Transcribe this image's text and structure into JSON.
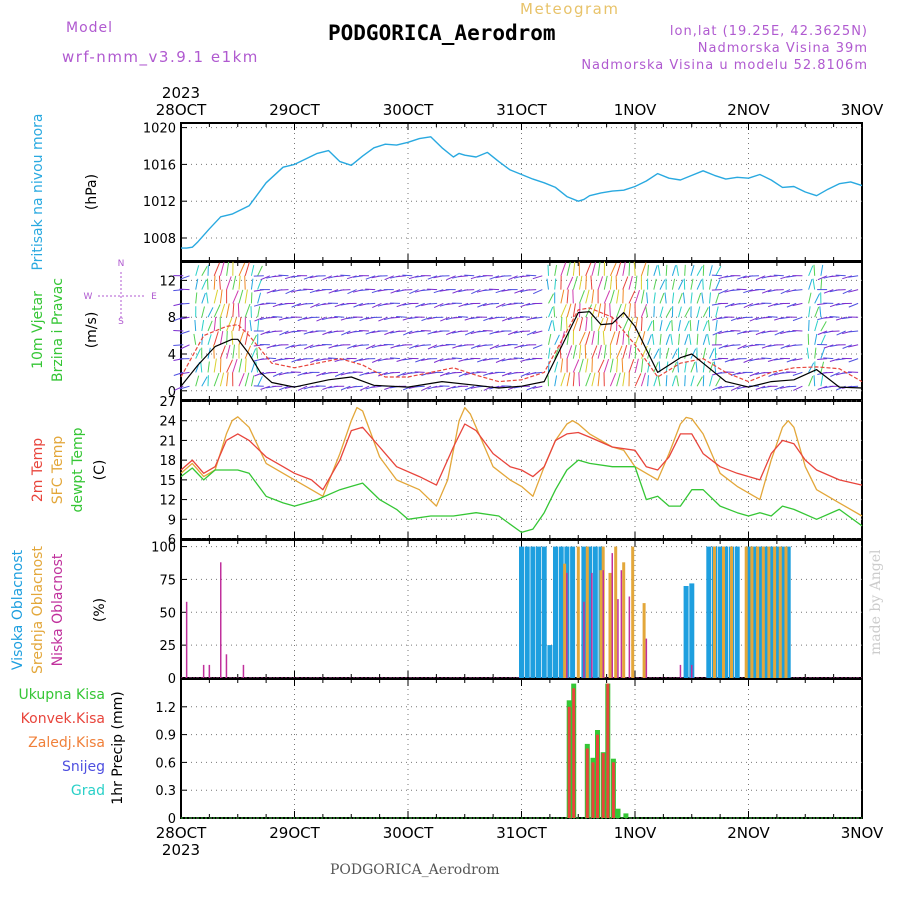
{
  "header": {
    "model_label": "Model",
    "model_name": "wrf-nmm_v3.9.1  e1km",
    "meteogram_label": "Meteogram",
    "station_title": "PODGORICA_Aerodrom",
    "coords": "lon,lat (19.25E, 42.3625N)",
    "elevation": "Nadmorska Visina 39m",
    "model_elevation": "Nadmorska Visina u modelu 52.8106m",
    "footer_title": "PODGORICA_Aerodrom",
    "watermark": "made by Angel"
  },
  "colors": {
    "pressure": "#29a9e0",
    "temp2m": "#e8453c",
    "sfc_temp": "#e3a73a",
    "dewpt": "#35c635",
    "cloud_high": "#1e9fdf",
    "cloud_mid": "#e3a73a",
    "cloud_low": "#c0309c",
    "precip_total": "#35c635",
    "precip_conv": "#e8453c",
    "header_purple": "#b05ad0",
    "meteogram_gold": "#e8c36a"
  },
  "chart_data": [
    {
      "type": "line",
      "panel": "pressure",
      "ylabels": [
        "Pritisak na nivou mora",
        "(hPa)"
      ],
      "xticks": [
        "28OCT",
        "29OCT",
        "30OCT",
        "31OCT",
        "1NOV",
        "2NOV",
        "3NOV"
      ],
      "year": "2023",
      "ylim": [
        1005.5,
        1020.5
      ],
      "yticks": [
        1008,
        1012,
        1016,
        1020
      ],
      "grid": true,
      "series": [
        {
          "x": [
            0,
            0.05,
            0.1,
            0.15,
            0.25,
            0.35,
            0.45,
            0.6,
            0.75,
            0.9,
            1.0,
            1.1,
            1.2,
            1.3,
            1.4,
            1.5,
            1.6,
            1.7,
            1.8,
            1.9,
            2.0,
            2.1,
            2.2,
            2.3,
            2.4,
            2.45,
            2.5,
            2.6,
            2.7,
            2.8,
            2.9,
            3.0,
            3.1,
            3.2,
            3.3,
            3.4,
            3.5,
            3.55,
            3.6,
            3.7,
            3.8,
            3.9,
            4.0,
            4.1,
            4.2,
            4.3,
            4.4,
            4.5,
            4.6,
            4.7,
            4.8,
            4.9,
            5.0,
            5.1,
            5.2,
            5.3,
            5.4,
            5.5,
            5.6,
            5.7,
            5.8,
            5.9,
            6.0
          ],
          "y": [
            1006.9,
            1006.9,
            1007.0,
            1007.6,
            1009.0,
            1010.3,
            1010.6,
            1011.5,
            1014.0,
            1015.7,
            1016.0,
            1016.6,
            1017.2,
            1017.5,
            1016.3,
            1015.9,
            1016.9,
            1017.8,
            1018.2,
            1018.1,
            1018.4,
            1018.8,
            1019.0,
            1017.8,
            1016.8,
            1017.2,
            1017.0,
            1016.8,
            1017.3,
            1016.3,
            1015.4,
            1014.9,
            1014.4,
            1014.0,
            1013.5,
            1012.5,
            1012.0,
            1012.2,
            1012.6,
            1012.9,
            1013.1,
            1013.2,
            1013.6,
            1014.2,
            1015.0,
            1014.5,
            1014.3,
            1014.8,
            1015.3,
            1014.8,
            1014.4,
            1014.6,
            1014.5,
            1014.9,
            1014.3,
            1013.5,
            1013.6,
            1013.0,
            1012.6,
            1013.3,
            1013.9,
            1014.1,
            1013.7
          ]
        }
      ]
    },
    {
      "type": "line",
      "panel": "wind",
      "ylabels": [
        "10m Vjetar",
        "Brzina i Pravac",
        "(m/s)"
      ],
      "compass": [
        "W",
        "E",
        "S",
        "N"
      ],
      "ylim": [
        -1,
        14
      ],
      "yticks": [
        0,
        4,
        8,
        12
      ],
      "grid": true,
      "series": [
        {
          "name": "speed",
          "x": [
            0,
            0.15,
            0.3,
            0.45,
            0.5,
            0.6,
            0.7,
            0.8,
            1.0,
            1.3,
            1.5,
            1.7,
            2.0,
            2.3,
            2.6,
            2.8,
            3.0,
            3.2,
            3.4,
            3.5,
            3.6,
            3.7,
            3.8,
            3.9,
            4.0,
            4.2,
            4.4,
            4.5,
            4.6,
            4.8,
            5.0,
            5.2,
            5.4,
            5.6,
            5.8,
            6.0
          ],
          "y": [
            0.5,
            2.8,
            4.8,
            5.6,
            5.6,
            4.0,
            2.0,
            0.9,
            0.4,
            1.2,
            1.5,
            0.6,
            0.4,
            1.0,
            0.6,
            0.3,
            0.5,
            1.0,
            6.0,
            8.5,
            8.6,
            7.2,
            7.3,
            8.5,
            7.0,
            2.0,
            3.6,
            4.0,
            3.0,
            1.0,
            0.4,
            1.0,
            1.2,
            2.3,
            0.4,
            0.3
          ]
        },
        {
          "name": "gust",
          "x": [
            0,
            0.2,
            0.4,
            0.5,
            0.6,
            0.8,
            1.0,
            1.2,
            1.4,
            1.6,
            1.8,
            2.0,
            2.2,
            2.4,
            2.6,
            2.8,
            3.0,
            3.2,
            3.4,
            3.5,
            3.6,
            3.8,
            4.0,
            4.2,
            4.4,
            4.6,
            4.8,
            5.0,
            5.2,
            5.4,
            5.6,
            5.8,
            6.0
          ],
          "y": [
            1.5,
            6.0,
            7.0,
            7.2,
            6.0,
            3.0,
            2.5,
            3.0,
            3.5,
            2.8,
            1.5,
            1.5,
            2.0,
            2.5,
            1.7,
            1.0,
            1.2,
            2.0,
            6.5,
            8.8,
            9.0,
            8.0,
            5.0,
            1.5,
            3.0,
            3.5,
            2.0,
            1.0,
            2.0,
            2.5,
            2.6,
            2.4,
            1.0
          ]
        }
      ]
    },
    {
      "type": "line",
      "panel": "temperature",
      "ylabels": [
        "2m Temp",
        "SFC Temp",
        "dewpt Temp",
        "(C)"
      ],
      "ylim": [
        6,
        27
      ],
      "yticks": [
        6,
        9,
        12,
        15,
        18,
        21,
        24,
        27
      ],
      "grid": true,
      "series": [
        {
          "name": "2m Temp",
          "x": [
            0,
            0.1,
            0.2,
            0.3,
            0.4,
            0.5,
            0.6,
            0.75,
            0.9,
            1.0,
            1.15,
            1.25,
            1.4,
            1.5,
            1.6,
            1.75,
            1.9,
            2.1,
            2.25,
            2.4,
            2.5,
            2.6,
            2.75,
            2.9,
            3.0,
            3.1,
            3.2,
            3.3,
            3.4,
            3.5,
            3.6,
            3.8,
            4.0,
            4.1,
            4.2,
            4.3,
            4.4,
            4.5,
            4.6,
            4.75,
            4.9,
            5.1,
            5.2,
            5.3,
            5.4,
            5.5,
            5.6,
            5.8,
            6.0
          ],
          "y": [
            16.5,
            18.0,
            16.0,
            17.0,
            21.0,
            22.0,
            21.0,
            18.5,
            17.0,
            16.0,
            15.0,
            13.5,
            18.0,
            22.5,
            23.0,
            20.0,
            17.0,
            15.5,
            14.2,
            20.0,
            23.5,
            22.5,
            19.0,
            17.0,
            16.5,
            15.5,
            17.0,
            21.0,
            22.0,
            22.2,
            21.5,
            20.0,
            19.5,
            17.0,
            16.5,
            18.5,
            22.0,
            22.0,
            19.0,
            17.0,
            16.0,
            15.0,
            19.0,
            21.0,
            20.5,
            18.0,
            16.5,
            15.0,
            14.2
          ]
        },
        {
          "name": "SFC Temp",
          "x": [
            0,
            0.1,
            0.2,
            0.3,
            0.4,
            0.45,
            0.5,
            0.6,
            0.75,
            0.9,
            1.0,
            1.1,
            1.25,
            1.4,
            1.5,
            1.55,
            1.6,
            1.75,
            1.9,
            2.1,
            2.25,
            2.35,
            2.45,
            2.5,
            2.55,
            2.6,
            2.75,
            2.9,
            3.0,
            3.1,
            3.2,
            3.3,
            3.4,
            3.45,
            3.5,
            3.6,
            3.8,
            3.9,
            4.0,
            4.1,
            4.2,
            4.3,
            4.4,
            4.45,
            4.5,
            4.6,
            4.75,
            4.9,
            5.1,
            5.2,
            5.3,
            5.35,
            5.4,
            5.5,
            5.6,
            5.8,
            6.0
          ],
          "y": [
            16.0,
            17.5,
            15.5,
            16.5,
            22.0,
            24.0,
            24.6,
            23.0,
            17.5,
            16.0,
            15.0,
            14.0,
            12.5,
            19.0,
            24.0,
            26.0,
            25.5,
            18.5,
            15.0,
            13.5,
            11.0,
            15.0,
            24.0,
            26.0,
            25.0,
            23.0,
            17.0,
            15.0,
            14.0,
            12.5,
            17.0,
            21.0,
            23.5,
            24.0,
            23.5,
            22.0,
            20.0,
            19.5,
            17.0,
            16.0,
            15.0,
            19.0,
            23.5,
            24.5,
            24.3,
            22.0,
            16.0,
            14.0,
            12.0,
            18.0,
            23.0,
            24.0,
            23.0,
            17.0,
            13.5,
            11.5,
            9.5
          ]
        },
        {
          "name": "dewpt Temp",
          "x": [
            0,
            0.1,
            0.2,
            0.3,
            0.5,
            0.6,
            0.75,
            0.9,
            1.0,
            1.1,
            1.2,
            1.4,
            1.5,
            1.6,
            1.75,
            1.9,
            2.0,
            2.2,
            2.4,
            2.6,
            2.8,
            3.0,
            3.1,
            3.2,
            3.3,
            3.4,
            3.5,
            3.6,
            3.8,
            4.0,
            4.1,
            4.2,
            4.3,
            4.4,
            4.5,
            4.6,
            4.75,
            4.9,
            5.0,
            5.1,
            5.2,
            5.3,
            5.4,
            5.6,
            5.8,
            6.0
          ],
          "y": [
            15.5,
            16.8,
            15.0,
            16.5,
            16.5,
            16.0,
            12.5,
            11.5,
            11.0,
            11.5,
            12.0,
            13.5,
            14.0,
            14.5,
            12.0,
            10.5,
            9.0,
            9.5,
            9.5,
            10.0,
            9.5,
            7.0,
            7.5,
            10.0,
            13.5,
            16.5,
            18.0,
            17.5,
            17.0,
            17.0,
            12.0,
            12.5,
            11.0,
            11.0,
            13.5,
            13.5,
            11.0,
            10.0,
            9.5,
            10.0,
            9.5,
            11.0,
            10.5,
            9.0,
            10.5,
            8.0
          ]
        }
      ]
    },
    {
      "type": "bar",
      "panel": "clouds",
      "ylabels": [
        "Visoka Oblacnost",
        "Srednja Oblacnost",
        "Niska Oblacnost",
        "(%)"
      ],
      "ylim": [
        0,
        105
      ],
      "yticks": [
        0,
        25,
        50,
        75,
        100
      ],
      "grid": true,
      "series": [
        {
          "name": "Visoka Oblacnost",
          "x": [
            3.0,
            3.05,
            3.1,
            3.15,
            3.2,
            3.25,
            3.3,
            3.35,
            3.4,
            3.45,
            3.55,
            3.6,
            3.65,
            3.7,
            4.45,
            4.5,
            4.65,
            4.7,
            4.75,
            4.8,
            4.85,
            4.9,
            5.0,
            5.05,
            5.1,
            5.15,
            5.2,
            5.25,
            5.3,
            5.35
          ],
          "y": [
            100,
            100,
            100,
            100,
            100,
            25,
            100,
            100,
            100,
            100,
            100,
            100,
            100,
            100,
            70,
            72,
            100,
            100,
            100,
            100,
            100,
            100,
            100,
            100,
            100,
            100,
            100,
            100,
            100,
            100
          ]
        },
        {
          "name": "Srednja Oblacnost",
          "x": [
            3.38,
            3.5,
            3.58,
            3.7,
            3.72,
            3.78,
            3.83,
            3.9,
            3.98,
            4.08,
            4.7,
            4.78,
            4.85,
            4.98,
            5.03,
            5.08,
            5.13,
            5.18,
            5.23,
            5.28,
            5.33
          ],
          "y": [
            87,
            100,
            100,
            82,
            100,
            80,
            100,
            88,
            100,
            57,
            100,
            100,
            100,
            100,
            100,
            100,
            100,
            100,
            100,
            100,
            100
          ]
        },
        {
          "name": "Niska Oblacnost",
          "x": [
            0.05,
            0.2,
            0.25,
            0.35,
            0.4,
            0.55,
            3.4,
            3.55,
            3.62,
            3.72,
            3.8,
            3.85,
            3.88,
            3.95,
            4.1,
            4.4,
            4.5
          ],
          "y": [
            58,
            10,
            10,
            88,
            18,
            10,
            80,
            58,
            80,
            82,
            95,
            60,
            82,
            62,
            30,
            10,
            10
          ]
        }
      ]
    },
    {
      "type": "bar",
      "panel": "precip",
      "ylabels": [
        "Ukupna  Kisa",
        "Konvek.Kisa",
        "Zaledj.Kisa",
        "Snijeg",
        "Grad",
        "1hr Precip (mm)"
      ],
      "ylim": [
        0,
        1.5
      ],
      "yticks": [
        0,
        0.3,
        0.6,
        0.9,
        1.2
      ],
      "grid": true,
      "series": [
        {
          "name": "Ukupna  Kisa",
          "x": [
            3.42,
            3.46,
            3.58,
            3.63,
            3.67,
            3.72,
            3.76,
            3.81,
            3.85,
            3.92
          ],
          "y": [
            1.27,
            1.45,
            0.8,
            0.65,
            0.95,
            0.71,
            1.45,
            0.64,
            0.1,
            0.05
          ]
        },
        {
          "name": "Konvek.Kisa",
          "x": [
            3.42,
            3.46,
            3.58,
            3.63,
            3.67,
            3.72,
            3.76,
            3.81
          ],
          "y": [
            1.2,
            1.4,
            0.75,
            0.6,
            0.9,
            0.7,
            1.45,
            0.6
          ]
        }
      ]
    }
  ]
}
